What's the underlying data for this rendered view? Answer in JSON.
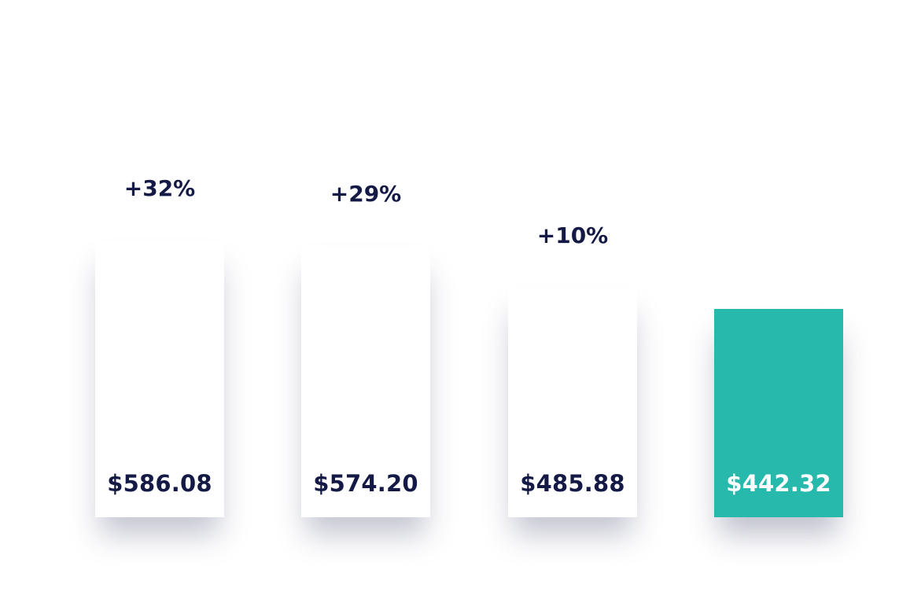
{
  "chart_data": {
    "type": "bar",
    "values": [
      586.08,
      574.2,
      485.88,
      442.32
    ],
    "value_labels": [
      "$586.08",
      "$574.20",
      "$485.88",
      "$442.32"
    ],
    "change_labels": [
      "+32%",
      "+29%",
      "+10%",
      ""
    ],
    "highlight_index": 3,
    "colors": {
      "bar": "#ffffff",
      "highlight": "#26b9ac",
      "text": "#141a45",
      "highlight_text": "#ffffff"
    }
  }
}
